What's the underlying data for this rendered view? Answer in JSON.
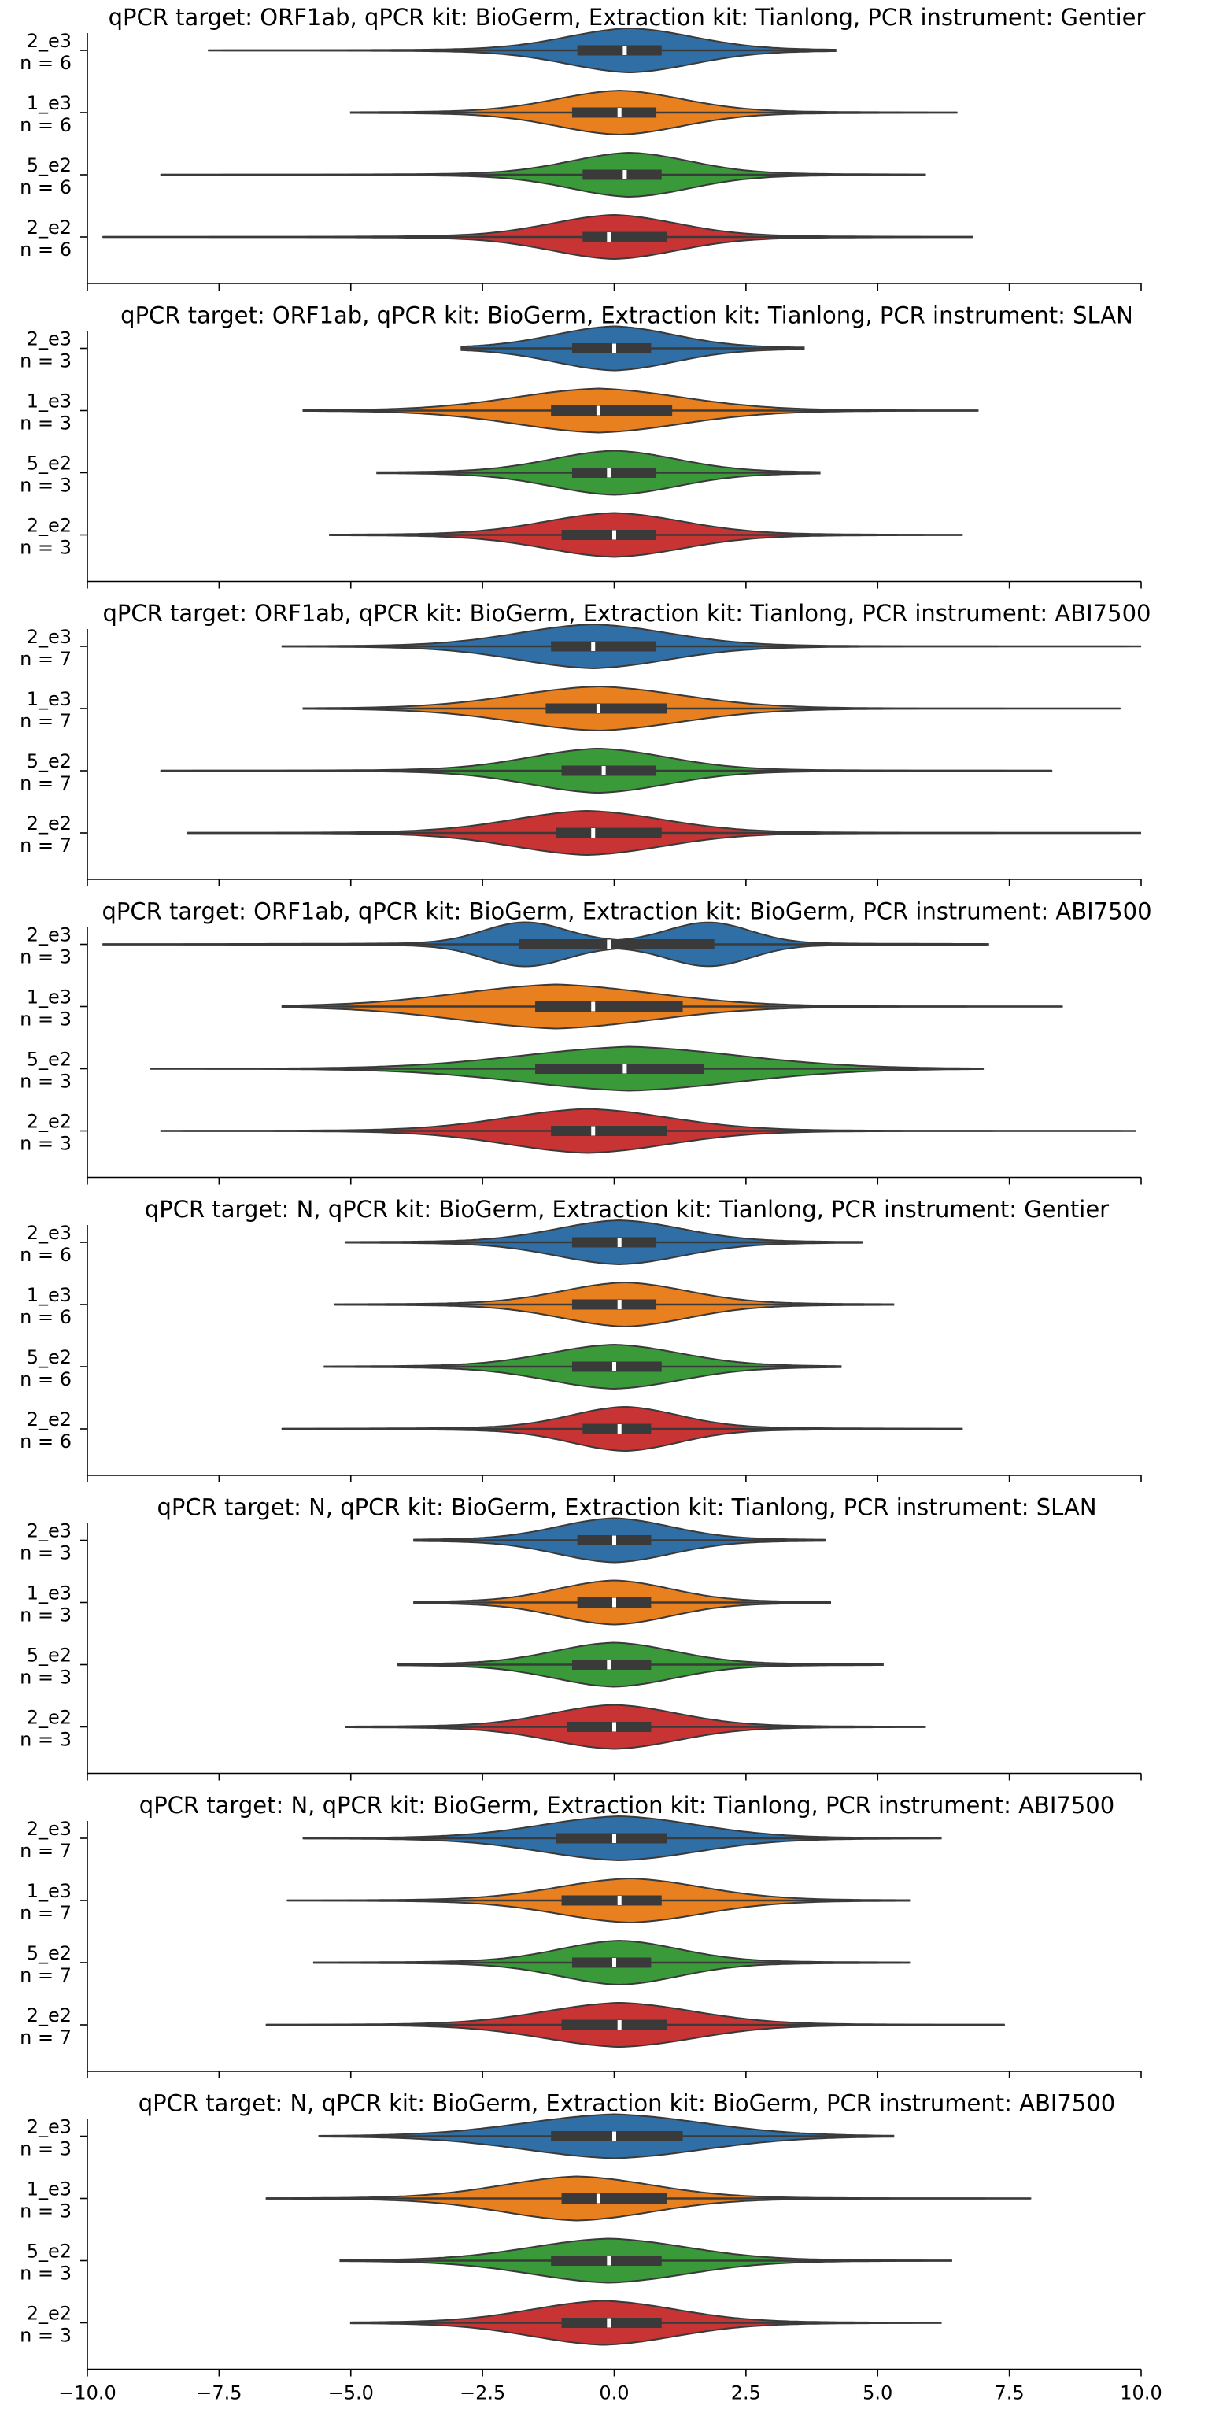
{
  "chart_data": {
    "type": "violin",
    "orientation": "horizontal",
    "xlim": [
      -10.0,
      10.0
    ],
    "x_ticks": [
      -10.0,
      -7.5,
      -5.0,
      -2.5,
      0.0,
      2.5,
      5.0,
      7.5,
      10.0
    ],
    "x_tick_labels": [
      "−10.0",
      "−7.5",
      "−5.0",
      "−2.5",
      "0.0",
      "2.5",
      "5.0",
      "7.5",
      "10.0"
    ],
    "categories": [
      "2_e3",
      "1_e3",
      "5_e2",
      "2_e2"
    ],
    "colors": [
      "#2f6fa6",
      "#e88020",
      "#3a9a3a",
      "#c83434"
    ],
    "box_color": "#3a3a3a",
    "panels": [
      {
        "title": "qPCR target: ORF1ab, qPCR kit: BioGerm, Extraction kit: Tianlong, PCR instrument: Gentier",
        "show_x_tick_labels": false,
        "violins": [
          {
            "label": "2_e3",
            "n_label": "n = 6",
            "min": -7.7,
            "max": 4.2,
            "q1": -0.7,
            "median": 0.2,
            "q3": 0.9,
            "peak": 0.3
          },
          {
            "label": "1_e3",
            "n_label": "n = 6",
            "min": -5.0,
            "max": 6.5,
            "q1": -0.8,
            "median": 0.1,
            "q3": 0.8,
            "peak": 0.1
          },
          {
            "label": "5_e2",
            "n_label": "n = 6",
            "min": -8.6,
            "max": 5.9,
            "q1": -0.6,
            "median": 0.2,
            "q3": 0.9,
            "peak": 0.3
          },
          {
            "label": "2_e2",
            "n_label": "n = 6",
            "min": -9.7,
            "max": 6.8,
            "q1": -0.6,
            "median": -0.1,
            "q3": 1.0,
            "peak": 0.0
          }
        ]
      },
      {
        "title": "qPCR target: ORF1ab, qPCR kit: BioGerm, Extraction kit: Tianlong, PCR instrument: SLAN",
        "show_x_tick_labels": false,
        "violins": [
          {
            "label": "2_e3",
            "n_label": "n = 3",
            "min": -2.9,
            "max": 3.6,
            "q1": -0.8,
            "median": 0.0,
            "q3": 0.7,
            "peak": 0.0
          },
          {
            "label": "1_e3",
            "n_label": "n = 3",
            "min": -5.9,
            "max": 6.9,
            "q1": -1.2,
            "median": -0.3,
            "q3": 1.1,
            "peak": -0.3
          },
          {
            "label": "5_e2",
            "n_label": "n = 3",
            "min": -4.5,
            "max": 3.9,
            "q1": -0.8,
            "median": -0.1,
            "q3": 0.8,
            "peak": 0.0
          },
          {
            "label": "2_e2",
            "n_label": "n = 3",
            "min": -5.4,
            "max": 6.6,
            "q1": -1.0,
            "median": 0.0,
            "q3": 0.8,
            "peak": 0.0
          }
        ]
      },
      {
        "title": "qPCR target: ORF1ab, qPCR kit: BioGerm, Extraction kit: Tianlong, PCR instrument: ABI7500",
        "show_x_tick_labels": false,
        "violins": [
          {
            "label": "2_e3",
            "n_label": "n = 7",
            "min": -6.3,
            "max": 10.0,
            "q1": -1.2,
            "median": -0.4,
            "q3": 0.8,
            "peak": -0.4
          },
          {
            "label": "1_e3",
            "n_label": "n = 7",
            "min": -5.9,
            "max": 9.6,
            "q1": -1.3,
            "median": -0.3,
            "q3": 1.0,
            "peak": -0.3
          },
          {
            "label": "5_e2",
            "n_label": "n = 7",
            "min": -8.6,
            "max": 8.3,
            "q1": -1.0,
            "median": -0.2,
            "q3": 0.8,
            "peak": -0.3
          },
          {
            "label": "2_e2",
            "n_label": "n = 7",
            "min": -8.1,
            "max": 10.0,
            "q1": -1.1,
            "median": -0.4,
            "q3": 0.9,
            "peak": -0.5
          }
        ]
      },
      {
        "title": "qPCR target: ORF1ab, qPCR kit: BioGerm, Extraction kit: BioGerm, PCR instrument: ABI7500",
        "show_x_tick_labels": false,
        "violins": [
          {
            "label": "2_e3",
            "n_label": "n = 3",
            "min": -9.7,
            "max": 7.1,
            "q1": -1.8,
            "median": -0.1,
            "q3": 1.9,
            "peak": -1.7,
            "bimodal": true,
            "peak2": 1.8
          },
          {
            "label": "1_e3",
            "n_label": "n = 3",
            "min": -6.3,
            "max": 8.5,
            "q1": -1.5,
            "median": -0.4,
            "q3": 1.3,
            "peak": -1.1
          },
          {
            "label": "5_e2",
            "n_label": "n = 3",
            "min": -8.8,
            "max": 7.0,
            "q1": -1.5,
            "median": 0.2,
            "q3": 1.7,
            "peak": 0.3
          },
          {
            "label": "2_e2",
            "n_label": "n = 3",
            "min": -8.6,
            "max": 9.9,
            "q1": -1.2,
            "median": -0.4,
            "q3": 1.0,
            "peak": -0.5
          }
        ]
      },
      {
        "title": "qPCR target: N, qPCR kit: BioGerm, Extraction kit: Tianlong, PCR instrument: Gentier",
        "show_x_tick_labels": false,
        "violins": [
          {
            "label": "2_e3",
            "n_label": "n = 6",
            "min": -5.1,
            "max": 4.7,
            "q1": -0.8,
            "median": 0.1,
            "q3": 0.8,
            "peak": 0.1
          },
          {
            "label": "1_e3",
            "n_label": "n = 6",
            "min": -5.3,
            "max": 5.3,
            "q1": -0.8,
            "median": 0.1,
            "q3": 0.8,
            "peak": 0.2
          },
          {
            "label": "5_e2",
            "n_label": "n = 6",
            "min": -5.5,
            "max": 4.3,
            "q1": -0.8,
            "median": 0.0,
            "q3": 0.9,
            "peak": 0.0
          },
          {
            "label": "2_e2",
            "n_label": "n = 6",
            "min": -6.3,
            "max": 6.6,
            "q1": -0.6,
            "median": 0.1,
            "q3": 0.7,
            "peak": 0.2
          }
        ]
      },
      {
        "title": "qPCR target: N, qPCR kit: BioGerm, Extraction kit: Tianlong, PCR instrument: SLAN",
        "show_x_tick_labels": false,
        "violins": [
          {
            "label": "2_e3",
            "n_label": "n = 3",
            "min": -3.8,
            "max": 4.0,
            "q1": -0.7,
            "median": 0.0,
            "q3": 0.7,
            "peak": 0.0
          },
          {
            "label": "1_e3",
            "n_label": "n = 3",
            "min": -3.8,
            "max": 4.1,
            "q1": -0.7,
            "median": 0.0,
            "q3": 0.7,
            "peak": 0.0
          },
          {
            "label": "5_e2",
            "n_label": "n = 3",
            "min": -4.1,
            "max": 5.1,
            "q1": -0.8,
            "median": -0.1,
            "q3": 0.7,
            "peak": 0.0
          },
          {
            "label": "2_e2",
            "n_label": "n = 3",
            "min": -5.1,
            "max": 5.9,
            "q1": -0.9,
            "median": 0.0,
            "q3": 0.7,
            "peak": 0.0
          }
        ]
      },
      {
        "title": "qPCR target: N, qPCR kit: BioGerm, Extraction kit: Tianlong, PCR instrument: ABI7500",
        "show_x_tick_labels": false,
        "violins": [
          {
            "label": "2_e3",
            "n_label": "n = 7",
            "min": -5.9,
            "max": 6.2,
            "q1": -1.1,
            "median": 0.0,
            "q3": 1.0,
            "peak": 0.1
          },
          {
            "label": "1_e3",
            "n_label": "n = 7",
            "min": -6.2,
            "max": 5.6,
            "q1": -1.0,
            "median": 0.1,
            "q3": 0.9,
            "peak": 0.3
          },
          {
            "label": "5_e2",
            "n_label": "n = 7",
            "min": -5.7,
            "max": 5.6,
            "q1": -0.8,
            "median": 0.0,
            "q3": 0.7,
            "peak": 0.1
          },
          {
            "label": "2_e2",
            "n_label": "n = 7",
            "min": -6.6,
            "max": 7.4,
            "q1": -1.0,
            "median": 0.1,
            "q3": 1.0,
            "peak": 0.1
          }
        ]
      },
      {
        "title": "qPCR target: N, qPCR kit: BioGerm, Extraction kit: BioGerm, PCR instrument: ABI7500",
        "show_x_tick_labels": true,
        "violins": [
          {
            "label": "2_e3",
            "n_label": "n = 3",
            "min": -5.6,
            "max": 5.3,
            "q1": -1.2,
            "median": 0.0,
            "q3": 1.3,
            "peak": 0.0
          },
          {
            "label": "1_e3",
            "n_label": "n = 3",
            "min": -6.6,
            "max": 7.9,
            "q1": -1.0,
            "median": -0.3,
            "q3": 1.0,
            "peak": -0.7
          },
          {
            "label": "5_e2",
            "n_label": "n = 3",
            "min": -5.2,
            "max": 6.4,
            "q1": -1.2,
            "median": -0.1,
            "q3": 0.9,
            "peak": -0.1
          },
          {
            "label": "2_e2",
            "n_label": "n = 3",
            "min": -5.0,
            "max": 6.2,
            "q1": -1.0,
            "median": -0.1,
            "q3": 0.9,
            "peak": -0.2
          }
        ]
      }
    ]
  }
}
